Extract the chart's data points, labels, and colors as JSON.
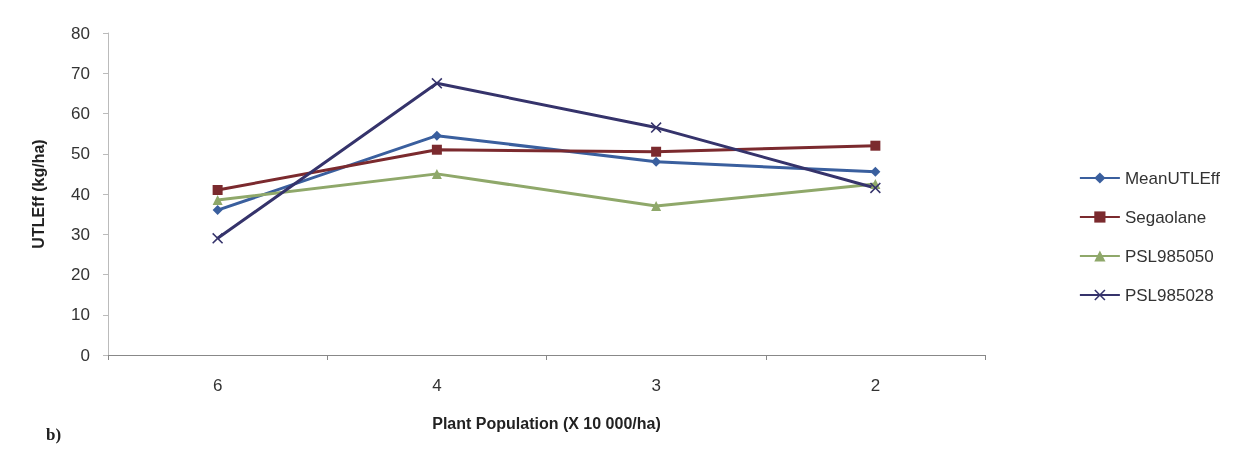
{
  "chart_data": {
    "type": "line",
    "xlabel": "Plant Population (X 10 000/ha)",
    "ylabel": "UTLEff (kg/ha)",
    "categories": [
      "6",
      "4",
      "3",
      "2"
    ],
    "series": [
      {
        "name": "MeanUTLEff",
        "color": "#3a5f9e",
        "marker": "diamond",
        "values": [
          36,
          54.5,
          48,
          45.5
        ]
      },
      {
        "name": "Segaolane",
        "color": "#7b2a2e",
        "marker": "square",
        "values": [
          41,
          51,
          50.5,
          52
        ]
      },
      {
        "name": "PSL985050",
        "color": "#8fa86a",
        "marker": "triangle",
        "values": [
          38.5,
          45,
          37,
          42.5
        ]
      },
      {
        "name": "PSL985028",
        "color": "#35336b",
        "marker": "cross",
        "values": [
          29,
          67.5,
          56.5,
          41.5
        ]
      }
    ],
    "ylim": [
      0,
      80
    ],
    "yticks": [
      0,
      10,
      20,
      30,
      40,
      50,
      60,
      70,
      80
    ],
    "grid": false,
    "legend": "right",
    "annotations": [
      "b)"
    ]
  }
}
